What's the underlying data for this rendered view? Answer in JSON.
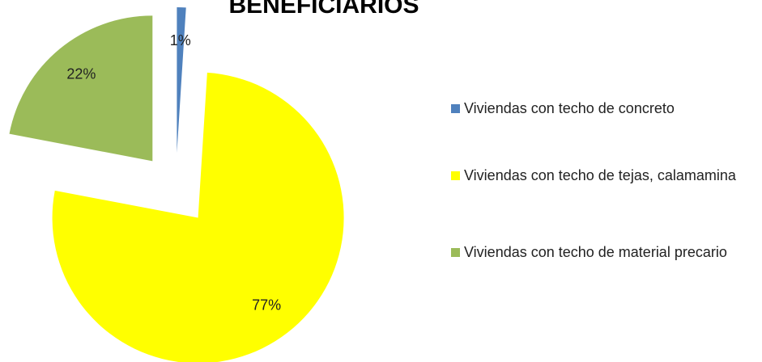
{
  "chart_data": {
    "type": "pie",
    "title": "BENEFICIARIOS",
    "categories": [
      "Viviendas con techo de concreto",
      "Viviendas con techo de tejas, calamamina",
      "Viviendas con techo de material precario"
    ],
    "values": [
      1,
      77,
      22
    ],
    "value_labels": [
      "1%",
      "77%",
      "22%"
    ],
    "colors": [
      "#4f81bd",
      "#ffff00",
      "#9bbb59"
    ],
    "legend": "right"
  }
}
